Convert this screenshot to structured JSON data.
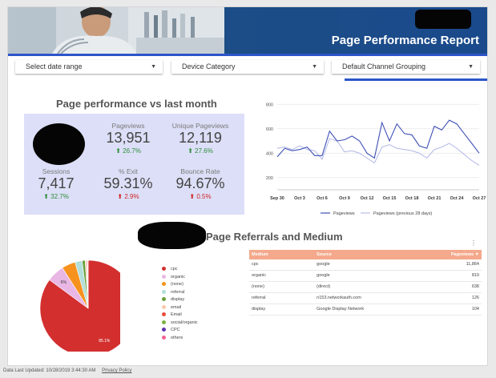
{
  "header": {
    "title": "Page Performance Report"
  },
  "filters": [
    {
      "label": "Select date range"
    },
    {
      "label": "Device Category"
    },
    {
      "label": "Default Channel Grouping"
    }
  ],
  "performance": {
    "title": "Page performance vs last month",
    "kpis": [
      {
        "label": "Pageviews",
        "value": "13,951",
        "delta": "26.7%",
        "direction": "up"
      },
      {
        "label": "Unique Pageviews",
        "value": "12,119",
        "delta": "27.6%",
        "direction": "up"
      },
      {
        "label": "Sessions",
        "value": "7,417",
        "delta": "32.7%",
        "direction": "up"
      },
      {
        "label": "% Exit",
        "value": "59.31%",
        "delta": "2.9%",
        "direction": "down"
      },
      {
        "label": "Bounce Rate",
        "value": "94.67%",
        "delta": "0.5%",
        "direction": "down"
      }
    ]
  },
  "referrals": {
    "title": "Page Referrals and Medium",
    "table": {
      "headers": [
        "Medium",
        "Source",
        "Pageviews"
      ],
      "sort_indicator": "▼",
      "rows": [
        [
          "cpc",
          "google",
          "11,864"
        ],
        [
          "organic",
          "google",
          "819"
        ],
        [
          "(none)",
          "(direct)",
          "638"
        ],
        [
          "referral",
          "n153.networkauth.com",
          "126"
        ],
        [
          "display",
          "Google Display Network",
          "104"
        ]
      ]
    },
    "menu_icon": "more-vert-icon"
  },
  "footer": {
    "updated": "Data Last Updated: 10/28/2019 3:44:30 AM",
    "privacy": "Privacy Policy"
  },
  "colors": {
    "banner": "#1c4d86",
    "accent": "#2c55c9",
    "kpi_bg": "#dcdff7",
    "line_current": "#3f51b5",
    "line_previous": "#b8bde8",
    "table_header": "#f4a98c",
    "up": "#2e8b3a",
    "down": "#d02424"
  },
  "chart_data": [
    {
      "type": "line",
      "x_tick_labels": [
        "Sep 30",
        "Oct 3",
        "Oct 6",
        "Oct 9",
        "Oct 12",
        "Oct 15",
        "Oct 18",
        "Oct 21",
        "Oct 24",
        "Oct 27"
      ],
      "x": [
        "Sep 30",
        "Oct 1",
        "Oct 2",
        "Oct 3",
        "Oct 4",
        "Oct 5",
        "Oct 6",
        "Oct 7",
        "Oct 8",
        "Oct 9",
        "Oct 10",
        "Oct 11",
        "Oct 12",
        "Oct 13",
        "Oct 14",
        "Oct 15",
        "Oct 16",
        "Oct 17",
        "Oct 18",
        "Oct 19",
        "Oct 20",
        "Oct 21",
        "Oct 22",
        "Oct 23",
        "Oct 24",
        "Oct 25",
        "Oct 26",
        "Oct 27"
      ],
      "series": [
        {
          "name": "Pageviews",
          "color": "#3f51b5",
          "values": [
            370,
            440,
            420,
            430,
            450,
            380,
            380,
            580,
            500,
            510,
            540,
            500,
            400,
            360,
            650,
            500,
            640,
            560,
            550,
            460,
            440,
            620,
            590,
            670,
            640,
            560,
            480,
            400
          ]
        },
        {
          "name": "Pageviews (previous 28 days)",
          "color": "#b8bde8",
          "values": [
            440,
            450,
            430,
            460,
            430,
            420,
            350,
            520,
            500,
            410,
            420,
            400,
            360,
            320,
            450,
            470,
            440,
            430,
            420,
            400,
            360,
            430,
            450,
            480,
            440,
            390,
            340,
            300
          ]
        }
      ],
      "y_ticks": [
        200,
        400,
        600,
        800
      ],
      "ylim": [
        100,
        900
      ],
      "grid": true,
      "legend": "bottom"
    },
    {
      "type": "pie",
      "slices": [
        {
          "label": "cpc",
          "value": 85.1,
          "color": "#d32f2f",
          "data_label": "85.1%"
        },
        {
          "label": "organic",
          "value": 5.9,
          "color": "#e9b7e4",
          "data_label": "6%"
        },
        {
          "label": "(none)",
          "value": 4.6,
          "color": "#f6921e"
        },
        {
          "label": "referral",
          "value": 2.4,
          "color": "#b2dfdb"
        },
        {
          "label": "display",
          "value": 1.0,
          "color": "#689f38"
        },
        {
          "label": "email",
          "value": 0.4,
          "color": "#f8c9a8"
        },
        {
          "label": "Email",
          "value": 0.3,
          "color": "#e74c3c"
        },
        {
          "label": "social/organic",
          "value": 0.1,
          "color": "#7cb342"
        },
        {
          "label": "CPC",
          "value": 0.1,
          "color": "#5e35b1"
        },
        {
          "label": "others",
          "value": 0.1,
          "color": "#f06292"
        }
      ],
      "legend": "right"
    }
  ]
}
